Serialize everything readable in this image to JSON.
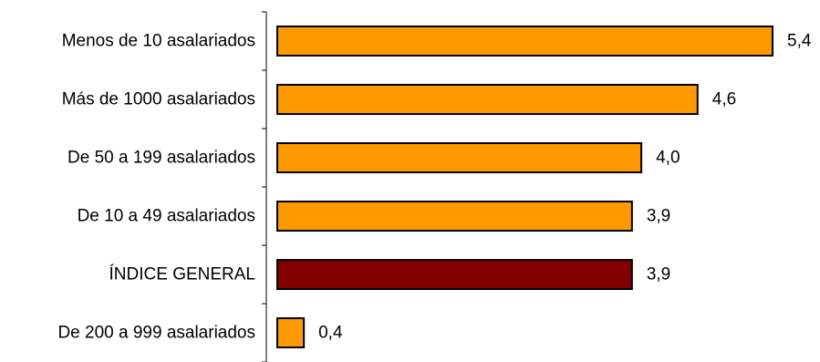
{
  "chart_data": {
    "type": "bar",
    "orientation": "horizontal",
    "categories": [
      "Menos de 10 asalariados",
      "Más de 1000 asalariados",
      "De 50 a 199 asalariados",
      "De 10 a 49 asalariados",
      "ÍNDICE GENERAL",
      "De 200 a 999 asalariados"
    ],
    "values": [
      5.4,
      4.6,
      4.0,
      3.9,
      3.9,
      0.4
    ],
    "value_labels": [
      "5,4",
      "4,6",
      "4,0",
      "3,9",
      "3,9",
      "0,4"
    ],
    "bar_colors": [
      "#FF9900",
      "#FF9900",
      "#FF9900",
      "#FF9900",
      "#800000",
      "#FF9900"
    ],
    "xlim": [
      0,
      5.4
    ],
    "grid": false,
    "legend": "none",
    "title": "",
    "xlabel": "",
    "ylabel": ""
  }
}
